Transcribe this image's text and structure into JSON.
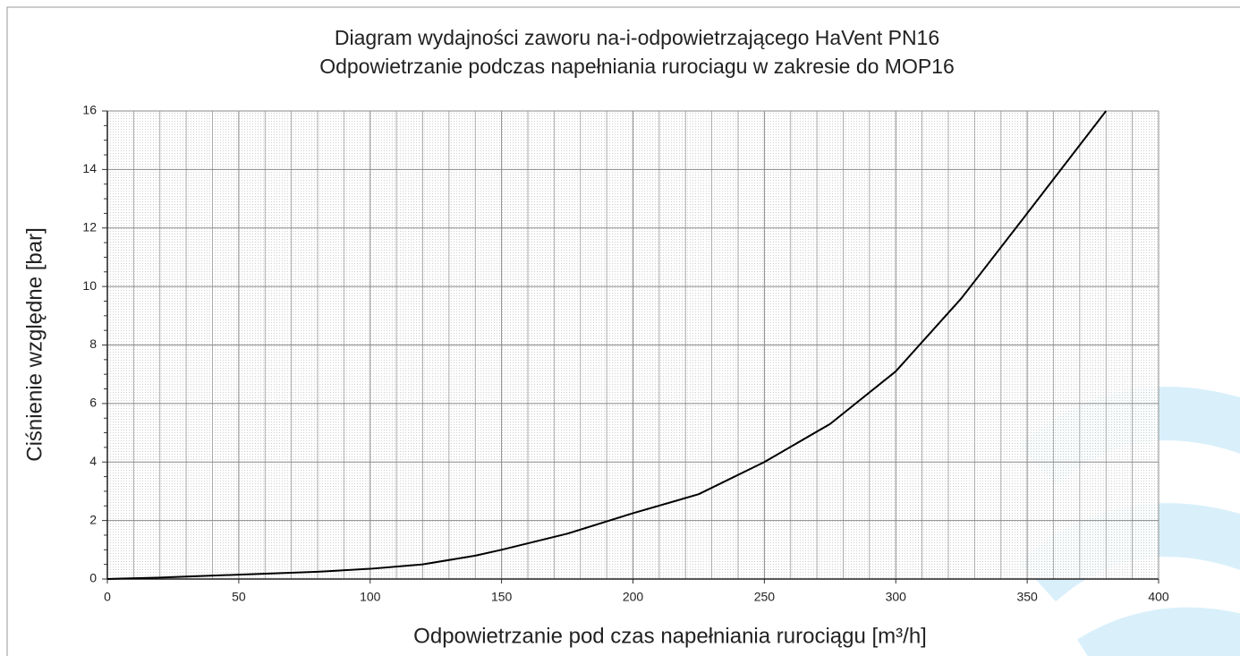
{
  "chart_data": {
    "type": "line",
    "title": "Diagram wydajności zaworu na-i-odpowietrzającego HaVent PN16",
    "subtitle": "Odpowietrzanie podczas napełniania rurociagu w zakresie do MOP16",
    "x_label": "Odpowietrzanie pod czas napełniania rurociągu  [m³/h]",
    "y_label": "Ciśnienie względne [bar]",
    "x": [
      0,
      20,
      50,
      80,
      100,
      120,
      140,
      150,
      175,
      200,
      225,
      250,
      275,
      300,
      325,
      350,
      380
    ],
    "values": [
      0,
      0.05,
      0.15,
      0.25,
      0.35,
      0.5,
      0.8,
      1.0,
      1.55,
      2.25,
      2.9,
      4.0,
      5.3,
      7.1,
      9.6,
      12.5,
      16
    ],
    "color": "#000000",
    "xlim": [
      0,
      400
    ],
    "ylim": [
      0,
      16
    ],
    "xticks": [
      0,
      50,
      100,
      150,
      200,
      250,
      300,
      350,
      400
    ],
    "yticks": [
      0,
      2,
      4,
      6,
      8,
      10,
      12,
      14,
      16
    ],
    "grid": true
  }
}
